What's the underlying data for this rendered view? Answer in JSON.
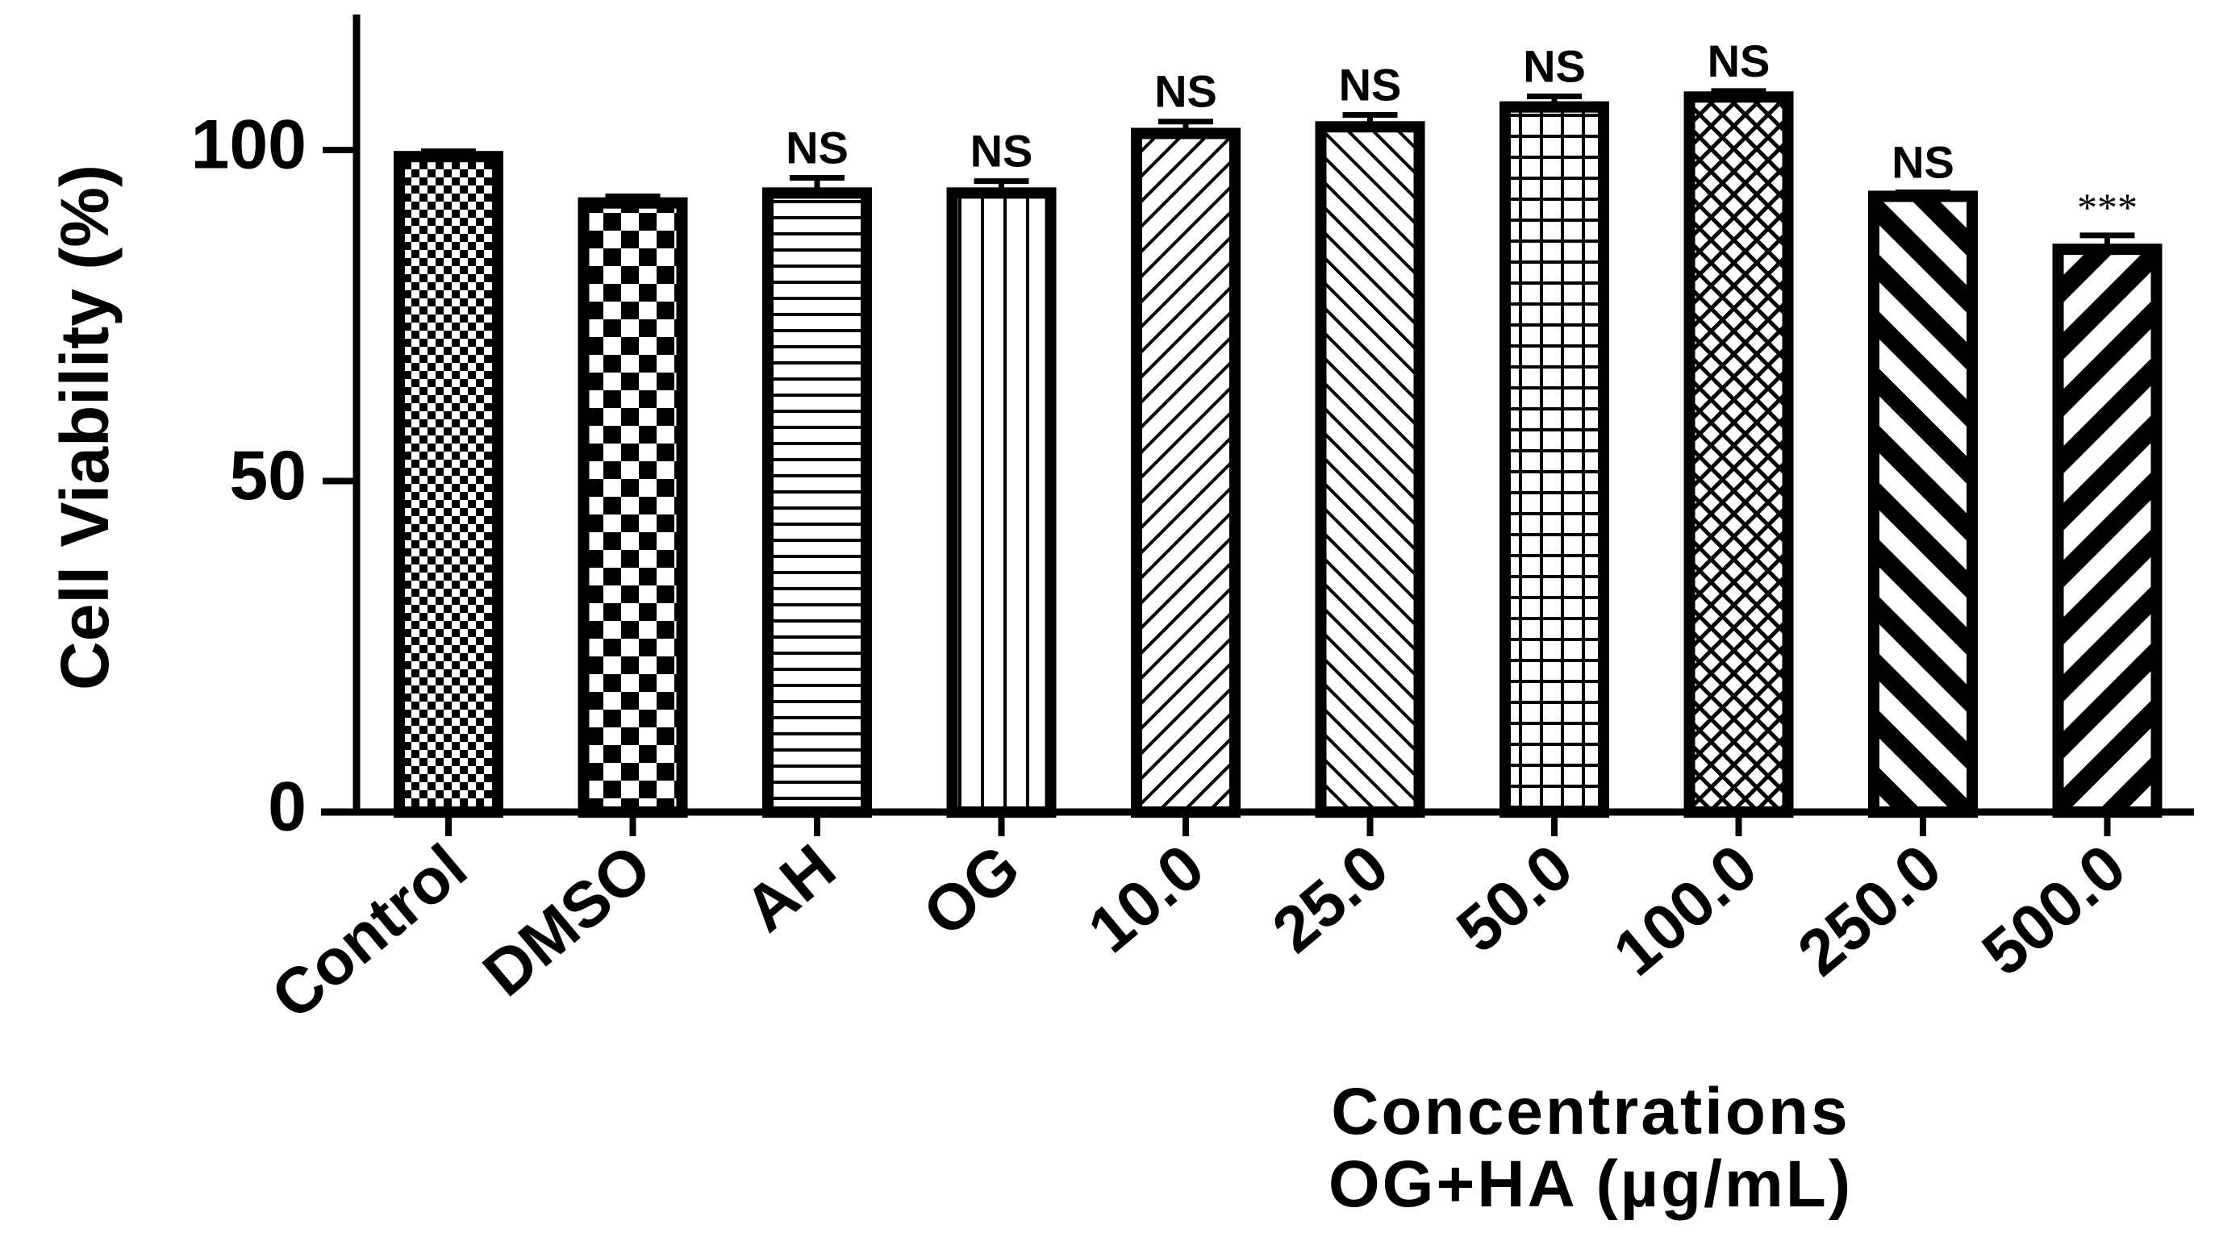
{
  "chart_data": {
    "type": "bar",
    "ylabel": "Cell Viability (%)",
    "xlabel_line1": "Concentrations",
    "xlabel_line2": "OG+HA (µg/mL)",
    "ylim": [
      0,
      120
    ],
    "yticks": [
      0,
      50,
      100
    ],
    "grid": false,
    "categories": [
      "Control",
      "DMSO",
      "AH",
      "OG",
      "10.0",
      "25.0",
      "50.0",
      "100.0",
      "250.0",
      "500.0"
    ],
    "values": [
      99,
      92,
      93.5,
      93.5,
      102.5,
      103.5,
      106.5,
      108,
      93,
      85
    ],
    "errors": [
      0.8,
      1.0,
      2.3,
      1.8,
      1.8,
      1.8,
      1.6,
      0.9,
      0.6,
      2.1
    ],
    "significance": [
      "",
      "",
      "NS",
      "NS",
      "NS",
      "NS",
      "NS",
      "NS",
      "NS",
      "***"
    ],
    "patterns": [
      "fine-checker",
      "coarse-checker",
      "horizontal-lines",
      "vertical-lines",
      "thin-diagonal-up",
      "thin-diagonal-down",
      "grid",
      "crosshatch",
      "thick-diagonal-down",
      "thick-diagonal-up"
    ],
    "colors": {
      "ink": "#000000",
      "background": "#ffffff"
    }
  }
}
